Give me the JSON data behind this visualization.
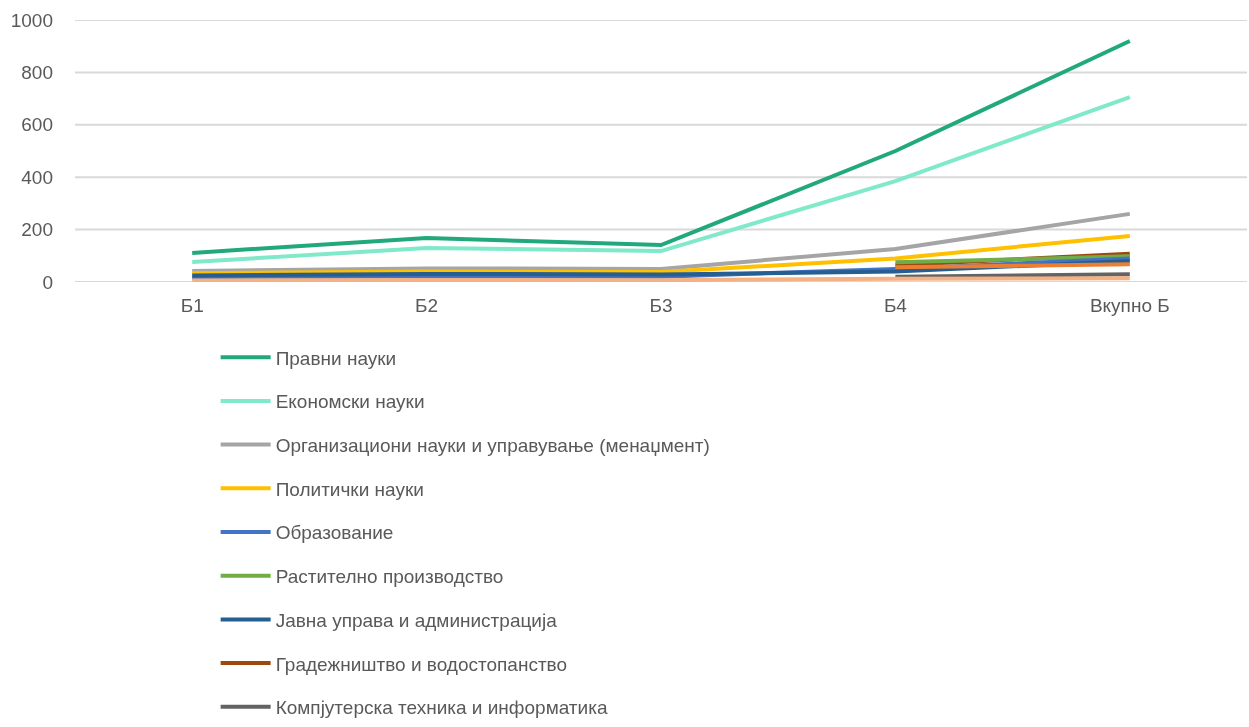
{
  "chart_data": {
    "type": "line",
    "categories": [
      "Б1",
      "Б2",
      "Б3",
      "Б4",
      "Вкупно Б"
    ],
    "series": [
      {
        "name": "Правни науки",
        "color": "#21a97c",
        "values": [
          111,
          168,
          141,
          500,
          920
        ]
      },
      {
        "name": "Економски науки",
        "color": "#7fe9c9",
        "values": [
          76,
          130,
          118,
          385,
          706
        ]
      },
      {
        "name": "Организациони науки и управување (менаџмент)",
        "color": "#a5a5a5",
        "values": [
          42,
          52,
          50,
          126,
          260
        ]
      },
      {
        "name": "Политички науки",
        "color": "#ffc000",
        "values": [
          33,
          40,
          38,
          90,
          176
        ]
      },
      {
        "name": "Образование",
        "color": "#4472c4",
        "values": [
          16,
          22,
          20,
          50,
          90
        ]
      },
      {
        "name": "Растително производство",
        "color": "#70ad47",
        "values": [
          null,
          null,
          null,
          75,
          98
        ]
      },
      {
        "name": "Јавна управа и администрација",
        "color": "#255e91",
        "values": [
          25,
          31,
          29,
          40,
          80
        ]
      },
      {
        "name": "Градежништво и водостопанство",
        "color": "#9e480e",
        "values": [
          null,
          null,
          null,
          64,
          108
        ]
      },
      {
        "name": "Компјутерска техника и информатика",
        "color": "#636363",
        "values": [
          null,
          null,
          null,
          20,
          30
        ]
      },
      {
        "color": "#ed7d31",
        "values": [
          null,
          null,
          null,
          56,
          68
        ]
      },
      {
        "color": "#f4b183",
        "values": [
          6,
          8,
          7,
          12,
          14
        ]
      }
    ],
    "ylim": [
      0,
      1000
    ],
    "yticks": [
      0,
      200,
      400,
      600,
      800,
      1000
    ],
    "grid": "y",
    "legend": "bottom"
  }
}
